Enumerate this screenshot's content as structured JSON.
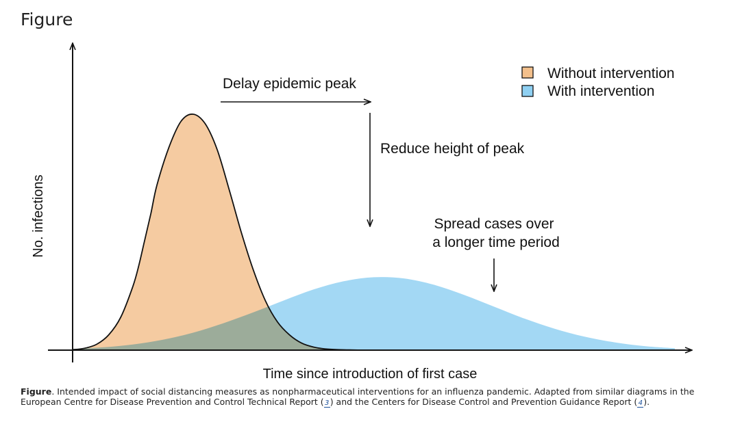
{
  "heading": "Figure",
  "chart_data": {
    "type": "area",
    "xlabel": "Time since introduction of first case",
    "ylabel": "No. infections",
    "legend_position": "top-right",
    "series": [
      {
        "name": "Without intervention",
        "color": "#f3c08c",
        "x": [
          0,
          2,
          4,
          6,
          8,
          10,
          11,
          12,
          13,
          14,
          16,
          18,
          20,
          22,
          24,
          26,
          28,
          30,
          32,
          34,
          36,
          38,
          40,
          42,
          44,
          46,
          48,
          50
        ],
        "y": [
          0.2,
          0.8,
          2.5,
          6.5,
          14,
          27,
          36,
          47,
          58,
          70,
          86,
          97,
          100,
          96,
          85,
          68,
          50,
          34,
          21,
          12,
          6.5,
          3,
          1.3,
          0.5,
          0.2,
          0.1,
          0,
          0
        ]
      },
      {
        "name": "With intervention",
        "color": "#8fd0f2",
        "x": [
          0,
          5,
          10,
          15,
          20,
          25,
          30,
          35,
          40,
          45,
          50,
          55,
          60,
          65,
          70,
          75,
          80,
          85,
          90,
          95,
          100
        ],
        "y": [
          0.5,
          1.2,
          2.4,
          4.4,
          7.4,
          11.4,
          16,
          21,
          25.7,
          29.2,
          30.9,
          30.4,
          27.7,
          23.4,
          18.4,
          13.4,
          9.1,
          5.7,
          3.3,
          1.7,
          0.8
        ]
      }
    ],
    "annotations": [
      "Delay epidemic peak",
      "Reduce height of peak",
      "Spread cases over",
      "a longer time period"
    ]
  },
  "caption": {
    "bold": "Figure",
    "text1": ". Intended impact of social distancing measures as nonpharmaceutical interventions for an influenza pandemic. Adapted from similar diagrams in the European Centre for Disease Prevention and Control Technical Report (",
    "ref1": "3",
    "text2": ") and the Centers for Disease Control and Prevention Guidance Report (",
    "ref2": "4",
    "text3": ")."
  }
}
